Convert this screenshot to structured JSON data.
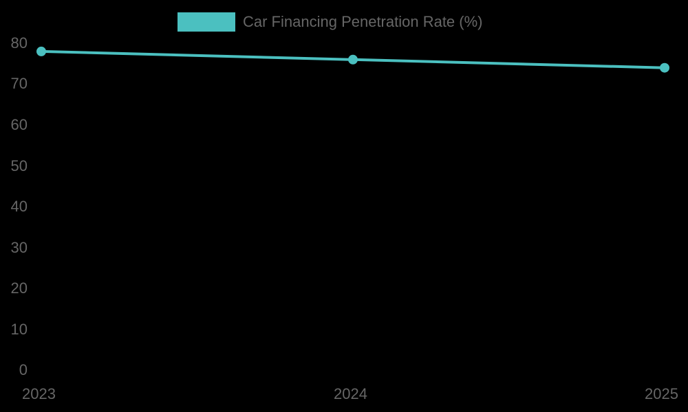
{
  "legend": {
    "label": "Car Financing Penetration Rate (%)",
    "color": "#4bc0c0"
  },
  "y_axis": {
    "ticks": [
      "80",
      "70",
      "60",
      "50",
      "40",
      "30",
      "20",
      "10",
      "0"
    ]
  },
  "x_axis": {
    "ticks": [
      "2023",
      "2024",
      "2025"
    ]
  },
  "chart_data": {
    "type": "line",
    "title": "",
    "categories": [
      "2023",
      "2024",
      "2025"
    ],
    "series": [
      {
        "name": "Car Financing Penetration Rate (%)",
        "values": [
          78,
          76,
          74
        ],
        "color": "#4bc0c0"
      }
    ],
    "xlabel": "",
    "ylabel": "",
    "ylim": [
      0,
      80
    ],
    "yticks": [
      0,
      10,
      20,
      30,
      40,
      50,
      60,
      70,
      80
    ],
    "grid": false,
    "legend_position": "top"
  }
}
